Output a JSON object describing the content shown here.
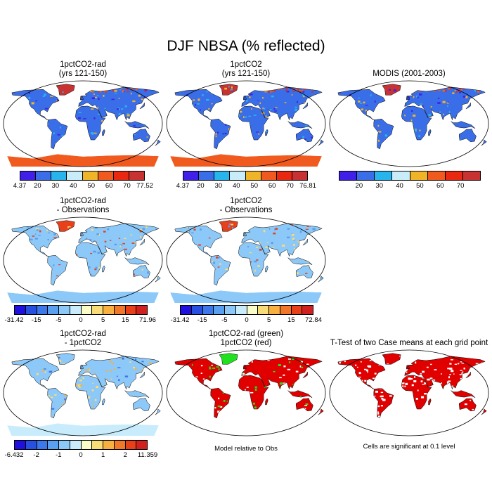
{
  "title": "DJF NBSA (% reflected)",
  "panels": [
    {
      "line1": "1pctCO2-rad",
      "line2": "(yrs 121-150)"
    },
    {
      "line1": "1pctCO2",
      "line2": "(yrs 121-150)"
    },
    {
      "line1": "MODIS (2001-2003)",
      "line2": ""
    },
    {
      "line1": "1pctCO2-rad",
      "line2": "- Observations"
    },
    {
      "line1": "1pctCO2",
      "line2": "- Observations"
    },
    {
      "line1": "1pctCO2-rad",
      "line2": "- 1pctCO2"
    },
    {
      "line1": "1pctCO2-rad (green)",
      "line2": "1pctCO2 (red)"
    },
    {
      "line1": "T-Test of two Case means at each grid point",
      "line2": ""
    }
  ],
  "colorbars": [
    {
      "colors": [
        "#4020e8",
        "#3a6ee8",
        "#28b4ec",
        "#c8ecf8",
        "#f0b428",
        "#f05a1e",
        "#e82810",
        "#c83232"
      ],
      "labels": [
        "4.37",
        "20",
        "30",
        "40",
        "50",
        "60",
        "70",
        "77.52"
      ]
    },
    {
      "colors": [
        "#4020e8",
        "#3a6ee8",
        "#28b4ec",
        "#c8ecf8",
        "#f0b428",
        "#f05a1e",
        "#e82810",
        "#c83232"
      ],
      "labels": [
        "4.37",
        "20",
        "30",
        "40",
        "50",
        "60",
        "70",
        "76.81"
      ]
    },
    {
      "colors": [
        "#4020e8",
        "#3a6ee8",
        "#28b4ec",
        "#c8ecf8",
        "#f0b428",
        "#f05a1e",
        "#e82810",
        "#c83232"
      ],
      "labels": [
        "",
        "20",
        "30",
        "40",
        "50",
        "60",
        "70",
        ""
      ]
    },
    {
      "colors": [
        "#2010e0",
        "#2850e0",
        "#3c78ec",
        "#5aa0f0",
        "#8cc8f8",
        "#c8ecfc",
        "#fcfcc8",
        "#f8dc78",
        "#f8b040",
        "#f07828",
        "#e84018",
        "#d02020"
      ],
      "labels": [
        "-31.42",
        "",
        "-15",
        "",
        "-5",
        "",
        "0",
        "",
        "5",
        "",
        "15",
        "",
        "71.96"
      ]
    },
    {
      "colors": [
        "#2010e0",
        "#2850e0",
        "#3c78ec",
        "#5aa0f0",
        "#8cc8f8",
        "#c8ecfc",
        "#fcfcc8",
        "#f8dc78",
        "#f8b040",
        "#f07828",
        "#e84018",
        "#d02020"
      ],
      "labels": [
        "-31.42",
        "",
        "-15",
        "",
        "-5",
        "",
        "0",
        "",
        "5",
        "",
        "15",
        "",
        "72.84"
      ]
    },
    {
      "colors": [
        "#2010e0",
        "#2850e0",
        "#3c78ec",
        "#5aa0f0",
        "#8cc8f8",
        "#c8ecfc",
        "#fcfcc8",
        "#f8dc78",
        "#f8b040",
        "#f07828",
        "#e84018",
        "#d02020"
      ],
      "labels": [
        "-6.432",
        "",
        "-2",
        "",
        "-1",
        "",
        "0",
        "",
        "1",
        "",
        "2",
        "",
        "11.359"
      ]
    }
  ],
  "notes": {
    "model_rel": "Model relative to Obs",
    "signif": "Cells are significant at 0.1 level"
  },
  "map_colors": {
    "ocean": "#ffffff",
    "land_blue": "#3a6ee8",
    "land_blue_dark": "#4020e8",
    "land_cyan": "#28b4ec",
    "snow_red": "#c83232",
    "snow_orange": "#f05a1e",
    "diff_light": "#8cc8f8",
    "diff_yellow": "#f8dc78",
    "diff_red": "#e84018",
    "green": "#20e020",
    "red": "#e00000"
  }
}
